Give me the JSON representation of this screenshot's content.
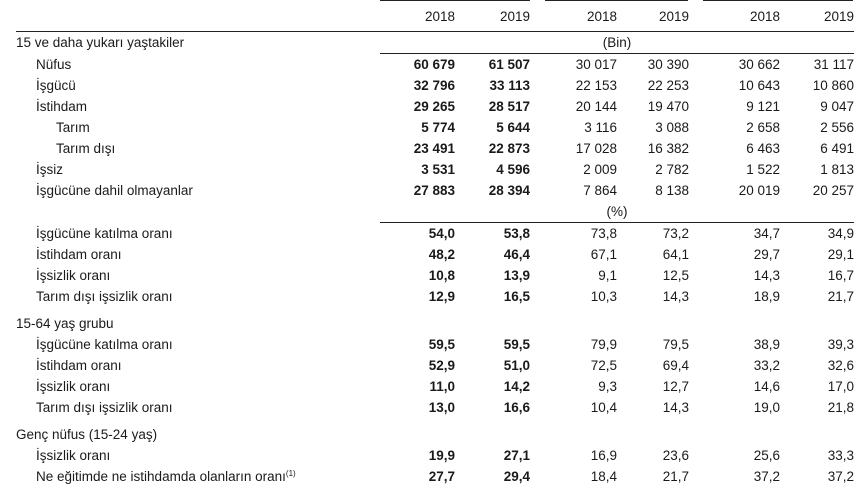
{
  "header": {
    "years": [
      "2018",
      "2019",
      "2018",
      "2019",
      "2018",
      "2019"
    ]
  },
  "sections": [
    {
      "label": "15 ve daha yukarı yaştakiler",
      "unit": "(Bin)",
      "rows": [
        {
          "label": "Nüfus",
          "indent": 1,
          "values": [
            "60 679",
            "61 507",
            "30 017",
            "30 390",
            "30 662",
            "31 117"
          ]
        },
        {
          "label": "İşgücü",
          "indent": 1,
          "values": [
            "32 796",
            "33 113",
            "22 153",
            "22 253",
            "10 643",
            "10 860"
          ]
        },
        {
          "label": "İstihdam",
          "indent": 1,
          "values": [
            "29 265",
            "28 517",
            "20 144",
            "19 470",
            "9 121",
            "9 047"
          ]
        },
        {
          "label": "Tarım",
          "indent": 2,
          "values": [
            "5 774",
            "5 644",
            "3 116",
            "3 088",
            "2 658",
            "2 556"
          ]
        },
        {
          "label": "Tarım dışı",
          "indent": 2,
          "values": [
            "23 491",
            "22 873",
            "17 028",
            "16 382",
            "6 463",
            "6 491"
          ]
        },
        {
          "label": "İşsiz",
          "indent": 1,
          "values": [
            "3 531",
            "4 596",
            "2 009",
            "2 782",
            "1 522",
            "1 813"
          ]
        },
        {
          "label": "İşgücüne dahil olmayanlar",
          "indent": 1,
          "values": [
            "27 883",
            "28 394",
            "7 864",
            "8 138",
            "20 019",
            "20 257"
          ]
        }
      ]
    },
    {
      "label": "",
      "unit": "(%)",
      "rows": [
        {
          "label": "İşgücüne katılma oranı",
          "indent": 1,
          "values": [
            "54,0",
            "53,8",
            "73,8",
            "73,2",
            "34,7",
            "34,9"
          ]
        },
        {
          "label": "İstihdam oranı",
          "indent": 1,
          "values": [
            "48,2",
            "46,4",
            "67,1",
            "64,1",
            "29,7",
            "29,1"
          ]
        },
        {
          "label": "İşsizlik oranı",
          "indent": 1,
          "values": [
            "10,8",
            "13,9",
            "9,1",
            "12,5",
            "14,3",
            "16,7"
          ]
        },
        {
          "label": "Tarım dışı işsizlik oranı",
          "indent": 1,
          "values": [
            "12,9",
            "16,5",
            "10,3",
            "14,3",
            "18,9",
            "21,7"
          ]
        }
      ]
    },
    {
      "label": "15-64 yaş grubu",
      "unit": "",
      "rows": [
        {
          "label": "İşgücüne katılma oranı",
          "indent": 1,
          "values": [
            "59,5",
            "59,5",
            "79,9",
            "79,5",
            "38,9",
            "39,3"
          ]
        },
        {
          "label": "İstihdam oranı",
          "indent": 1,
          "values": [
            "52,9",
            "51,0",
            "72,5",
            "69,4",
            "33,2",
            "32,6"
          ]
        },
        {
          "label": "İşsizlik oranı",
          "indent": 1,
          "values": [
            "11,0",
            "14,2",
            "9,3",
            "12,7",
            "14,6",
            "17,0"
          ]
        },
        {
          "label": "Tarım dışı işsizlik oranı",
          "indent": 1,
          "values": [
            "13,0",
            "16,6",
            "10,4",
            "14,3",
            "19,0",
            "21,8"
          ]
        }
      ]
    },
    {
      "label": "Genç nüfus (15-24 yaş)",
      "unit": "",
      "rows": [
        {
          "label": "İşsizlik oranı",
          "indent": 1,
          "values": [
            "19,9",
            "27,1",
            "16,9",
            "23,6",
            "25,6",
            "33,3"
          ]
        },
        {
          "label": "Ne eğitimde ne istihdamda olanların oranı",
          "indent": 1,
          "sup": "(1)",
          "values": [
            "27,7",
            "29,4",
            "18,4",
            "21,7",
            "37,2",
            "37,2"
          ]
        }
      ]
    }
  ]
}
